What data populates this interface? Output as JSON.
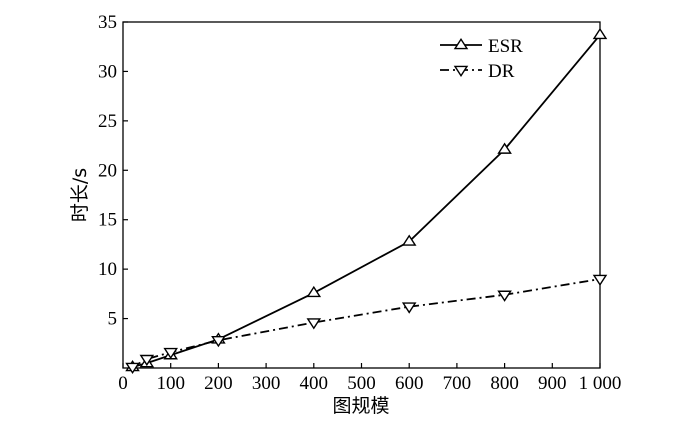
{
  "chart_data": {
    "type": "line",
    "title": "",
    "xlabel": "图规模",
    "ylabel": "时长/s",
    "xlim": [
      0,
      1000
    ],
    "ylim": [
      0,
      35
    ],
    "xticks": [
      0,
      100,
      200,
      300,
      400,
      500,
      600,
      700,
      800,
      900,
      1000
    ],
    "xtick_labels": [
      "0",
      "100",
      "200",
      "300",
      "400",
      "500",
      "600",
      "700",
      "800",
      "900",
      "1 000"
    ],
    "yticks": [
      5,
      10,
      15,
      20,
      25,
      30,
      35
    ],
    "ytick_labels": [
      "5",
      "10",
      "15",
      "20",
      "25",
      "30",
      "35"
    ],
    "grid": false,
    "legend_position": "top-right",
    "series": [
      {
        "name": "ESR",
        "line_style": "solid",
        "marker": "triangle-up",
        "color": "#000000",
        "x": [
          20,
          50,
          100,
          200,
          400,
          600,
          800,
          1000
        ],
        "y": [
          0.1,
          0.5,
          1.3,
          2.9,
          7.6,
          12.8,
          22.1,
          33.7
        ]
      },
      {
        "name": "DR",
        "line_style": "dash-dot",
        "marker": "triangle-down",
        "color": "#000000",
        "x": [
          20,
          50,
          100,
          200,
          400,
          600,
          800,
          1000
        ],
        "y": [
          0.1,
          0.9,
          1.6,
          2.8,
          4.6,
          6.2,
          7.4,
          9.0
        ]
      }
    ]
  }
}
